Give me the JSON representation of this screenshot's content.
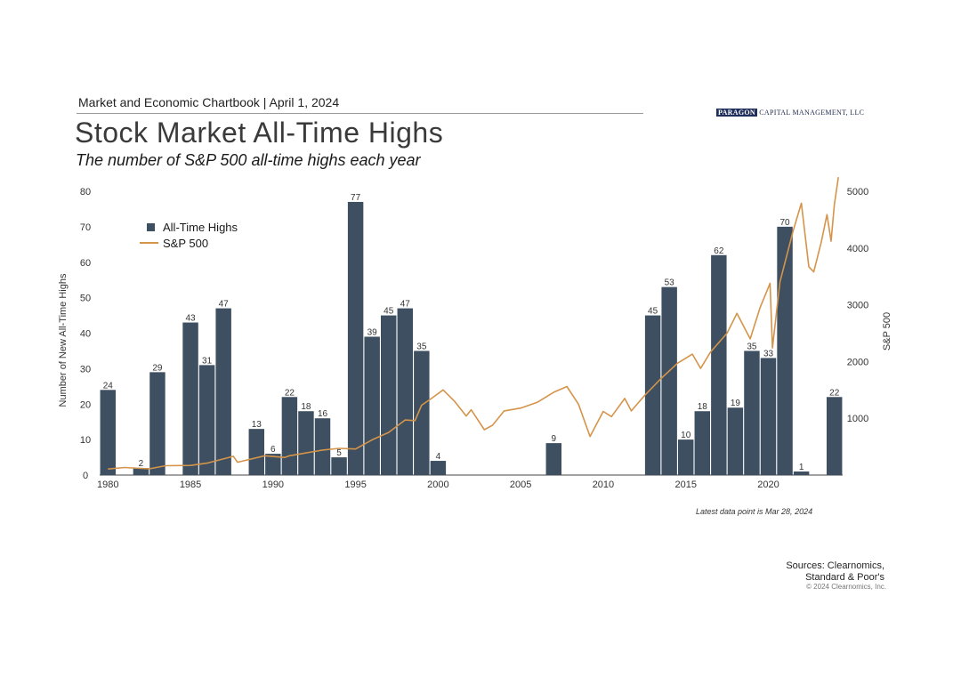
{
  "header": {
    "report_line": "Market and Economic Chartbook | April 1, 2024",
    "logo_box": "PARAGON",
    "logo_rest": "CAPITAL MANAGEMENT, LLC"
  },
  "title": "Stock Market All-Time Highs",
  "subtitle": "The number of S&P 500 all-time highs each year",
  "note": "Latest data point is Mar 28, 2024",
  "sources_line1": "Sources: Clearnomics,",
  "sources_line2": "Standard & Poor's",
  "copyright": "© 2024 Clearnomics, Inc.",
  "chart_data": {
    "type": "bar",
    "ylabel": "Number of New All-Time Highs",
    "y2label": "S&P 500",
    "ylim": [
      0,
      80
    ],
    "y2lim": [
      0,
      5000
    ],
    "yticks": [
      0,
      10,
      20,
      30,
      40,
      50,
      60,
      70,
      80
    ],
    "y2ticks": [
      1000,
      2000,
      3000,
      4000,
      5000
    ],
    "xticks": [
      1980,
      1985,
      1990,
      1995,
      2000,
      2005,
      2010,
      2015,
      2020
    ],
    "xlim": [
      1979.5,
      2024.5
    ],
    "legend_position": "top-left",
    "colors": {
      "bars": "#3d4f60",
      "line": "#d4944a"
    },
    "series": [
      {
        "name": "All-Time Highs",
        "type": "bar",
        "points": [
          {
            "x": 1980,
            "y": 24
          },
          {
            "x": 1982,
            "y": 2
          },
          {
            "x": 1983,
            "y": 29
          },
          {
            "x": 1985,
            "y": 43
          },
          {
            "x": 1986,
            "y": 31
          },
          {
            "x": 1987,
            "y": 47
          },
          {
            "x": 1989,
            "y": 13
          },
          {
            "x": 1990,
            "y": 6
          },
          {
            "x": 1991,
            "y": 22
          },
          {
            "x": 1992,
            "y": 18
          },
          {
            "x": 1993,
            "y": 16
          },
          {
            "x": 1994,
            "y": 5
          },
          {
            "x": 1995,
            "y": 77
          },
          {
            "x": 1996,
            "y": 39
          },
          {
            "x": 1997,
            "y": 45
          },
          {
            "x": 1998,
            "y": 47
          },
          {
            "x": 1999,
            "y": 35
          },
          {
            "x": 2000,
            "y": 4
          },
          {
            "x": 2007,
            "y": 9
          },
          {
            "x": 2013,
            "y": 45
          },
          {
            "x": 2014,
            "y": 53
          },
          {
            "x": 2015,
            "y": 10
          },
          {
            "x": 2016,
            "y": 18
          },
          {
            "x": 2017,
            "y": 62
          },
          {
            "x": 2018,
            "y": 19
          },
          {
            "x": 2019,
            "y": 35
          },
          {
            "x": 2020,
            "y": 33
          },
          {
            "x": 2021,
            "y": 70
          },
          {
            "x": 2022,
            "y": 1
          },
          {
            "x": 2024,
            "y": 22
          }
        ]
      },
      {
        "name": "S&P 500",
        "type": "line",
        "axis": "right",
        "points": [
          {
            "x": 1980.0,
            "y": 106
          },
          {
            "x": 1981.0,
            "y": 133
          },
          {
            "x": 1982.5,
            "y": 110
          },
          {
            "x": 1983.5,
            "y": 165
          },
          {
            "x": 1985.0,
            "y": 170
          },
          {
            "x": 1986.0,
            "y": 210
          },
          {
            "x": 1987.6,
            "y": 330
          },
          {
            "x": 1987.85,
            "y": 225
          },
          {
            "x": 1989.5,
            "y": 340
          },
          {
            "x": 1990.7,
            "y": 310
          },
          {
            "x": 1991.0,
            "y": 340
          },
          {
            "x": 1993.0,
            "y": 440
          },
          {
            "x": 1994.0,
            "y": 470
          },
          {
            "x": 1995.0,
            "y": 460
          },
          {
            "x": 1996.0,
            "y": 620
          },
          {
            "x": 1997.0,
            "y": 750
          },
          {
            "x": 1998.0,
            "y": 970
          },
          {
            "x": 1998.6,
            "y": 960
          },
          {
            "x": 1999.0,
            "y": 1230
          },
          {
            "x": 1999.5,
            "y": 1330
          },
          {
            "x": 2000.3,
            "y": 1500
          },
          {
            "x": 2001.0,
            "y": 1300
          },
          {
            "x": 2001.7,
            "y": 1040
          },
          {
            "x": 2002.0,
            "y": 1150
          },
          {
            "x": 2002.8,
            "y": 800
          },
          {
            "x": 2003.3,
            "y": 880
          },
          {
            "x": 2004.0,
            "y": 1130
          },
          {
            "x": 2005.0,
            "y": 1180
          },
          {
            "x": 2006.0,
            "y": 1280
          },
          {
            "x": 2007.0,
            "y": 1460
          },
          {
            "x": 2007.8,
            "y": 1560
          },
          {
            "x": 2008.5,
            "y": 1250
          },
          {
            "x": 2009.2,
            "y": 680
          },
          {
            "x": 2010.0,
            "y": 1120
          },
          {
            "x": 2010.5,
            "y": 1030
          },
          {
            "x": 2011.3,
            "y": 1350
          },
          {
            "x": 2011.7,
            "y": 1130
          },
          {
            "x": 2012.5,
            "y": 1400
          },
          {
            "x": 2013.5,
            "y": 1700
          },
          {
            "x": 2014.5,
            "y": 1970
          },
          {
            "x": 2015.4,
            "y": 2130
          },
          {
            "x": 2015.9,
            "y": 1880
          },
          {
            "x": 2016.5,
            "y": 2170
          },
          {
            "x": 2017.5,
            "y": 2500
          },
          {
            "x": 2018.1,
            "y": 2850
          },
          {
            "x": 2018.9,
            "y": 2400
          },
          {
            "x": 2019.5,
            "y": 2950
          },
          {
            "x": 2020.1,
            "y": 3380
          },
          {
            "x": 2020.25,
            "y": 2240
          },
          {
            "x": 2020.7,
            "y": 3400
          },
          {
            "x": 2021.5,
            "y": 4300
          },
          {
            "x": 2022.0,
            "y": 4790
          },
          {
            "x": 2022.45,
            "y": 3670
          },
          {
            "x": 2022.75,
            "y": 3580
          },
          {
            "x": 2023.2,
            "y": 4100
          },
          {
            "x": 2023.55,
            "y": 4590
          },
          {
            "x": 2023.8,
            "y": 4120
          },
          {
            "x": 2024.0,
            "y": 4770
          },
          {
            "x": 2024.24,
            "y": 5250
          }
        ]
      }
    ]
  }
}
